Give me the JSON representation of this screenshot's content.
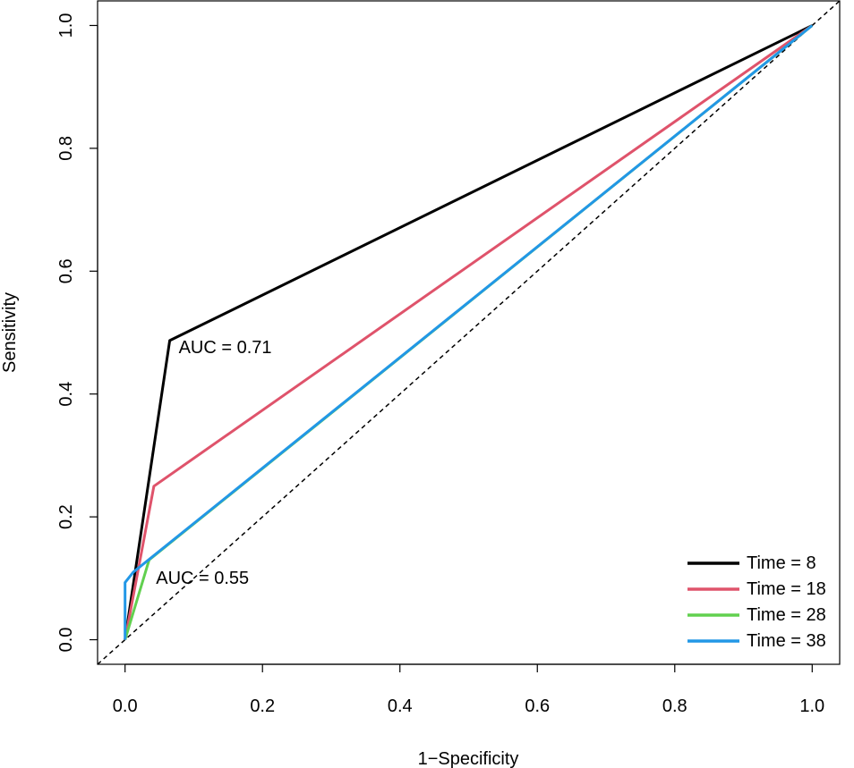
{
  "chart_data": {
    "type": "line",
    "xlabel": "1−Specificity",
    "ylabel": "Sensitivity",
    "xlim": [
      -0.04,
      1.04
    ],
    "ylim": [
      -0.04,
      1.04
    ],
    "x_ticks": [
      "0.0",
      "0.2",
      "0.4",
      "0.6",
      "0.8",
      "1.0"
    ],
    "y_ticks": [
      "0.0",
      "0.2",
      "0.4",
      "0.6",
      "0.8",
      "1.0"
    ],
    "x_tick_values": [
      0,
      0.2,
      0.4,
      0.6,
      0.8,
      1.0
    ],
    "y_tick_values": [
      0,
      0.2,
      0.4,
      0.6,
      0.8,
      1.0
    ],
    "reference_line": {
      "style": "dashed",
      "color": "#000000"
    },
    "series": [
      {
        "name": "Time = 8",
        "color": "#000000",
        "x": [
          0,
          0.065,
          1
        ],
        "y": [
          0,
          0.487,
          1
        ]
      },
      {
        "name": "Time = 18",
        "color": "#DF536B",
        "x": [
          0,
          0.042,
          1
        ],
        "y": [
          0,
          0.25,
          1
        ]
      },
      {
        "name": "Time = 28",
        "color": "#61D04F",
        "x": [
          0,
          0.035,
          1
        ],
        "y": [
          0,
          0.13,
          1
        ]
      },
      {
        "name": "Time = 38",
        "color": "#2297E6",
        "x": [
          0,
          0,
          0.012,
          1
        ],
        "y": [
          0,
          0.093,
          0.11,
          1
        ]
      }
    ],
    "annotations": [
      {
        "text": "AUC = 0.71",
        "x": 0.078,
        "y": 0.475
      },
      {
        "text": "AUC = 0.55",
        "x": 0.045,
        "y": 0.1
      }
    ],
    "legend": {
      "position": "bottom-right",
      "entries": [
        {
          "label": "Time = 8",
          "color": "#000000"
        },
        {
          "label": "Time = 18",
          "color": "#DF536B"
        },
        {
          "label": "Time = 28",
          "color": "#61D04F"
        },
        {
          "label": "Time = 38",
          "color": "#2297E6"
        }
      ]
    },
    "grid": false
  }
}
